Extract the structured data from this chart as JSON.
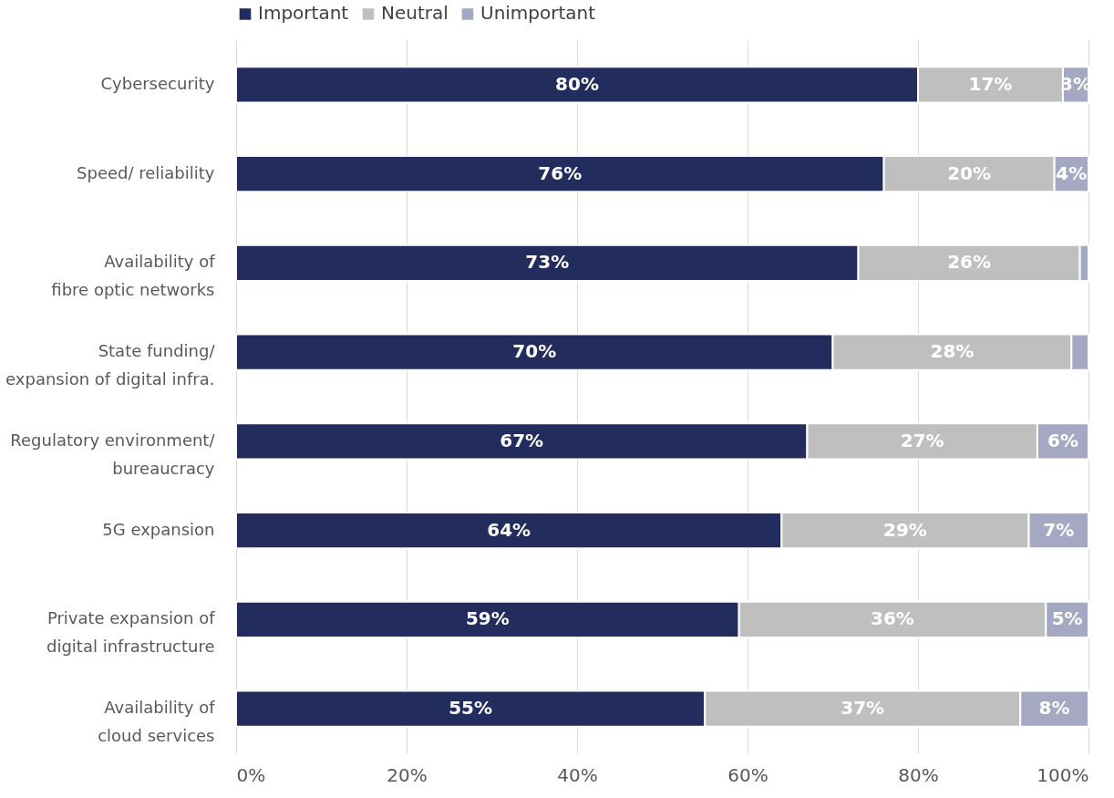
{
  "chart_data": {
    "type": "bar",
    "orientation": "horizontal",
    "stacked": true,
    "categories": [
      "Cybersecurity",
      "Speed/ reliability",
      "Availability of\nfibre optic networks",
      "State funding/\nexpansion of digital infra.",
      "Regulatory environment/\nbureaucracy",
      "5G expansion",
      "Private expansion of\ndigital infrastructure",
      "Availability of\ncloud services"
    ],
    "series": [
      {
        "name": "Important",
        "color": "#222d5e",
        "values": [
          80,
          76,
          73,
          70,
          67,
          64,
          59,
          55
        ],
        "value_labels": [
          "80%",
          "76%",
          "73%",
          "70%",
          "67%",
          "64%",
          "59%",
          "55%"
        ]
      },
      {
        "name": "Neutral",
        "color": "#bfbfbf",
        "values": [
          17,
          20,
          26,
          28,
          27,
          29,
          36,
          37
        ],
        "value_labels": [
          "17%",
          "20%",
          "26%",
          "28%",
          "27%",
          "29%",
          "36%",
          "37%"
        ]
      },
      {
        "name": "Unimportant",
        "color": "#a5a8c3",
        "values": [
          3,
          4,
          1,
          2,
          6,
          7,
          5,
          8
        ],
        "value_labels": [
          "3%",
          "4%",
          null,
          null,
          "6%",
          "7%",
          "5%",
          "8%"
        ]
      }
    ],
    "xlim": [
      0,
      100
    ],
    "xticks": [
      {
        "value": 0,
        "label": "0%"
      },
      {
        "value": 20,
        "label": "20%"
      },
      {
        "value": 40,
        "label": "40%"
      },
      {
        "value": 60,
        "label": "60%"
      },
      {
        "value": 80,
        "label": "80%"
      },
      {
        "value": 100,
        "label": "100%"
      }
    ],
    "grid": "x",
    "legend": "top"
  }
}
